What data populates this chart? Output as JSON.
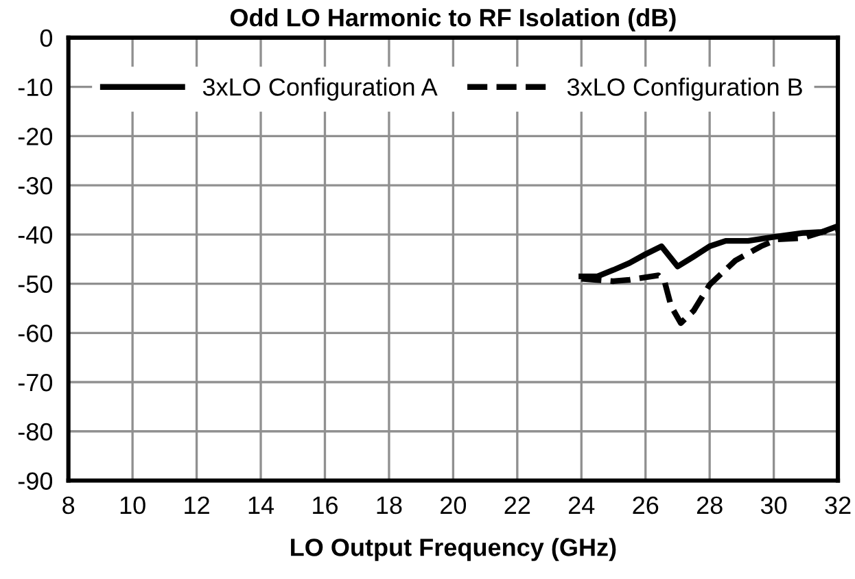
{
  "chart_data": {
    "type": "line",
    "title": "Odd LO Harmonic to RF Isolation (dB)",
    "xlabel": "LO Output Frequency (GHz)",
    "xlim": [
      8,
      32
    ],
    "xticks": [
      8,
      10,
      12,
      14,
      16,
      18,
      20,
      22,
      24,
      26,
      28,
      30,
      32
    ],
    "ylim": [
      -90,
      0
    ],
    "yticks": [
      -90,
      -80,
      -70,
      -60,
      -50,
      -40,
      -30,
      -20,
      -10,
      0
    ],
    "grid": true,
    "legend": "top",
    "marker": "none",
    "series": [
      {
        "name": "3xLO Configuration A",
        "color": "#000000",
        "line_style": "solid",
        "x": [
          24,
          24.5,
          25,
          25.5,
          26,
          26.5,
          27,
          27.5,
          28,
          28.5,
          29.2,
          30,
          30.9,
          31.5,
          32
        ],
        "values": [
          -48.5,
          -48.5,
          -47.2,
          -45.8,
          -44,
          -42.4,
          -46.5,
          -44.5,
          -42.4,
          -41.3,
          -41.3,
          -40.5,
          -39.7,
          -39.5,
          -38.3
        ]
      },
      {
        "name": "3xLO Configuration B",
        "color": "#000000",
        "line_style": "dashed",
        "x": [
          24,
          25,
          25.5,
          26.4,
          26.6,
          26.8,
          27.1,
          27.5,
          28,
          28.8,
          29.6,
          30.1,
          30.9,
          31.5,
          32
        ],
        "values": [
          -49,
          -49.5,
          -49.2,
          -48.3,
          -49.7,
          -54.6,
          -58,
          -55.5,
          -50.2,
          -45.3,
          -42.4,
          -41,
          -40.7,
          -39.5,
          -39
        ]
      }
    ]
  }
}
